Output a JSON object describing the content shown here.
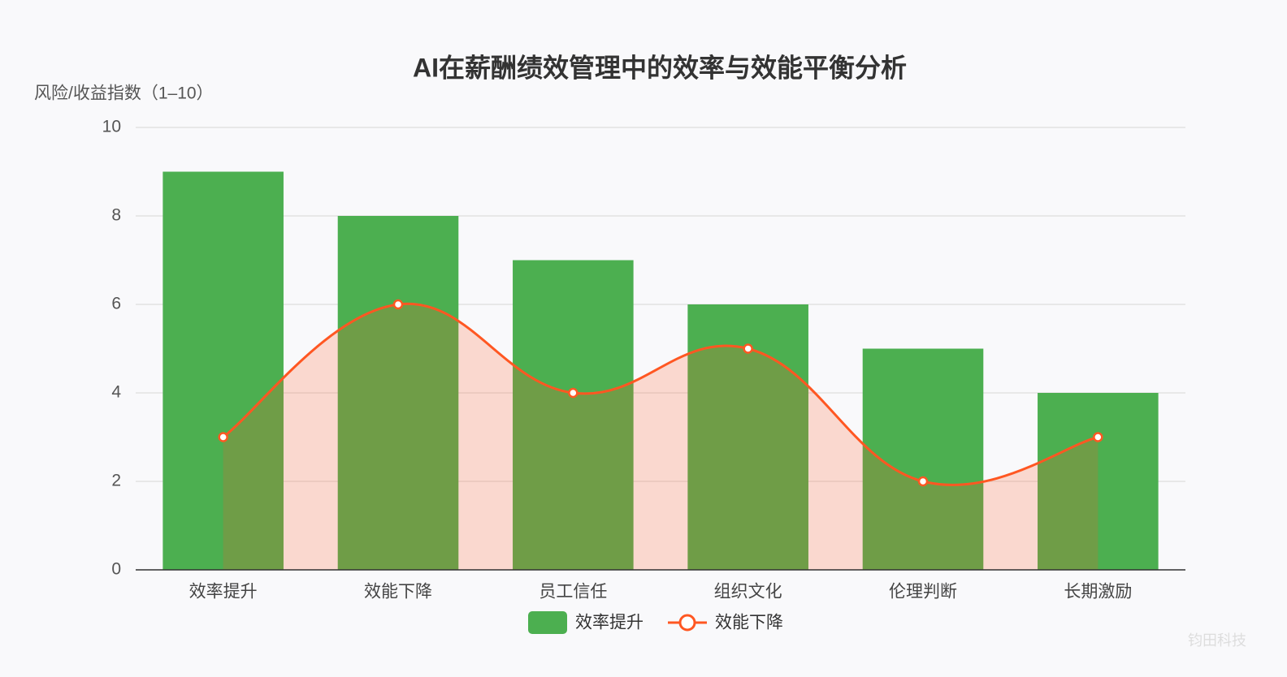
{
  "chart_data": {
    "type": "combo",
    "title": "AI在薪酬绩效管理中的效率与效能平衡分析",
    "y_label": "风险/收益指数（1–10）",
    "categories": [
      "效率提升",
      "效能下降",
      "员工信任",
      "组织文化",
      "伦理判断",
      "长期激励"
    ],
    "series": [
      {
        "name": "效率提升",
        "type": "bar",
        "color": "#4caf50",
        "values": [
          9,
          8,
          7,
          6,
          5,
          4
        ]
      },
      {
        "name": "效能下降",
        "type": "line",
        "color": "#ff5722",
        "area_color": "rgba(255,87,34,0.2)",
        "smooth": true,
        "values": [
          3,
          6,
          4,
          5,
          2,
          3
        ]
      }
    ],
    "ylim": [
      0,
      10
    ],
    "yticks": [
      0,
      2,
      4,
      6,
      8,
      10
    ],
    "grid": true,
    "legend": "bottom",
    "watermark": "钧田科技"
  }
}
